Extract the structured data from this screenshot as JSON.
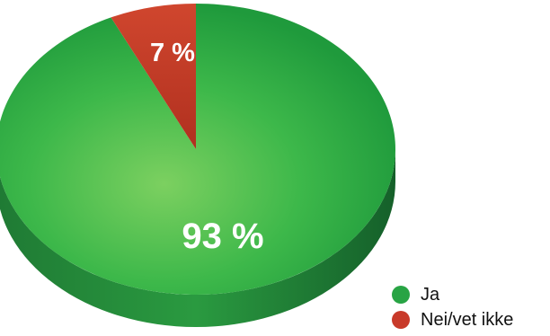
{
  "chart_data": {
    "type": "pie",
    "categories": [
      "Ja",
      "Nei/vet ikke"
    ],
    "values": [
      93,
      7
    ],
    "data_labels": [
      "93 %",
      "7 %"
    ],
    "colors": [
      "#28a444",
      "#c83a2a"
    ],
    "style": "3d",
    "legend_placement": "bottom-right"
  }
}
